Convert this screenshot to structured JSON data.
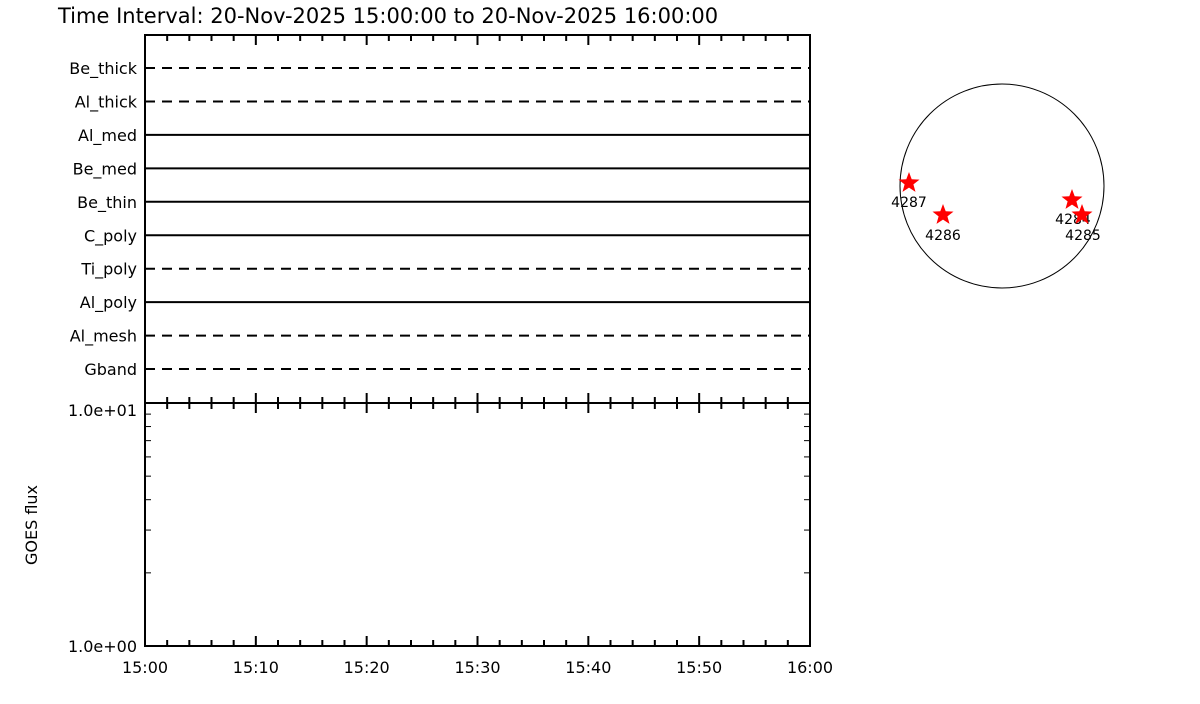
{
  "title": "Time Interval: 20-Nov-2025 15:00:00 to 20-Nov-2025 16:00:00",
  "colors": {
    "axes": "#000000",
    "star": "#ff0000",
    "background": "#ffffff"
  },
  "chart_data": [
    {
      "type": "line",
      "panel": "filter-timeline",
      "x_tick_labels": [
        "15:00",
        "15:10",
        "15:20",
        "15:30",
        "15:40",
        "15:50",
        "16:00"
      ],
      "xlim": [
        "15:00",
        "16:00"
      ],
      "filters": [
        {
          "name": "Be_thick",
          "style": "dashed"
        },
        {
          "name": "Al_thick",
          "style": "dashed"
        },
        {
          "name": "Al_med",
          "style": "solid"
        },
        {
          "name": "Be_med",
          "style": "solid"
        },
        {
          "name": "Be_thin",
          "style": "solid"
        },
        {
          "name": "C_poly",
          "style": "solid"
        },
        {
          "name": "Ti_poly",
          "style": "dashed"
        },
        {
          "name": "Al_poly",
          "style": "solid"
        },
        {
          "name": "Al_mesh",
          "style": "dashed"
        },
        {
          "name": "Gband",
          "style": "dashed"
        }
      ]
    },
    {
      "type": "line",
      "panel": "goes-flux",
      "ylabel": "GOES flux",
      "yscale": "log",
      "ylim": [
        1,
        10
      ],
      "y_tick_labels": [
        "1.0e+01",
        "1.0e+00"
      ],
      "x_tick_labels": [
        "15:00",
        "15:10",
        "15:20",
        "15:30",
        "15:40",
        "15:50",
        "16:00"
      ],
      "xlim": [
        "15:00",
        "16:00"
      ],
      "series": []
    },
    {
      "type": "scatter",
      "panel": "solar-disk",
      "active_regions": [
        "4287",
        "4286",
        "4284",
        "4285"
      ]
    }
  ]
}
